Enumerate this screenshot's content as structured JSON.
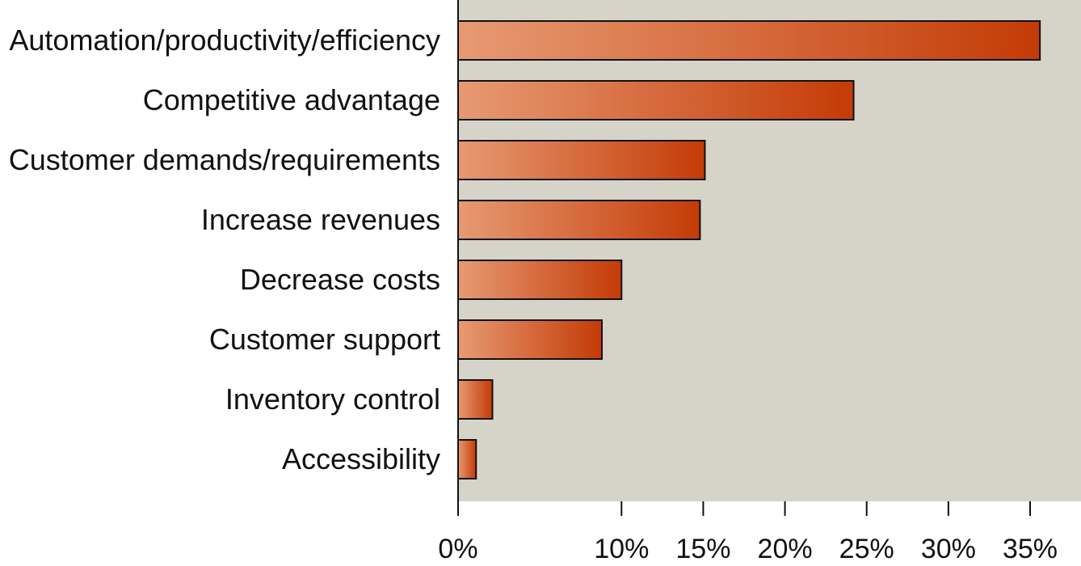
{
  "chart_data": {
    "type": "bar",
    "orientation": "horizontal",
    "categories": [
      "Automation/productivity/efficiency",
      "Competitive advantage",
      "Customer demands/requirements",
      "Increase revenues",
      "Decrease costs",
      "Customer support",
      "Inventory control",
      "Accessibility"
    ],
    "values": [
      35.6,
      24.2,
      15.1,
      14.8,
      10.0,
      8.8,
      2.1,
      1.1
    ],
    "value_unit": "%",
    "xlim": [
      0,
      35
    ],
    "x_ticks": [
      0,
      10,
      15,
      20,
      25,
      30,
      35
    ],
    "x_tick_labels": [
      "0%",
      "10%",
      "15%",
      "20%",
      "25%",
      "30%",
      "35%"
    ],
    "title": "",
    "xlabel": "",
    "ylabel": "",
    "grid": false,
    "legend": "none",
    "colors": {
      "plot_background": "#d6d3c8",
      "bar_light": "#e79a73",
      "bar_dark": "#c43b06",
      "axis": "#111111"
    }
  }
}
